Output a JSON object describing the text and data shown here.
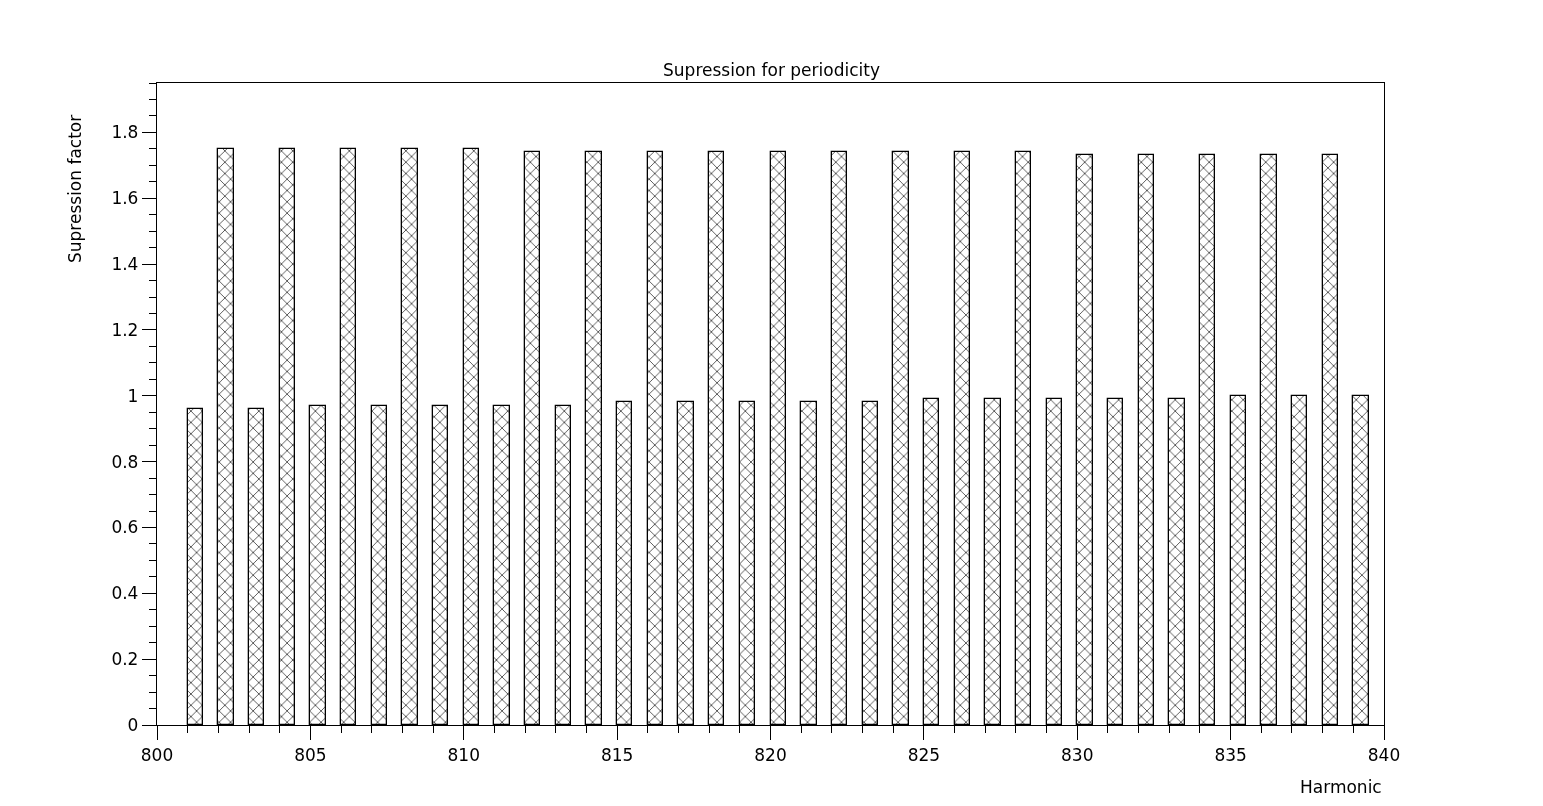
{
  "chart_data": {
    "type": "bar",
    "title": "Supression for periodicity",
    "xlabel": "Harmonic",
    "ylabel": "Supression factor",
    "x": [
      801.25,
      802.25,
      803.25,
      804.25,
      805.25,
      806.25,
      807.25,
      808.25,
      809.25,
      810.25,
      811.25,
      812.25,
      813.25,
      814.25,
      815.25,
      816.25,
      817.25,
      818.25,
      819.25,
      820.25,
      821.25,
      822.25,
      823.25,
      824.25,
      825.25,
      826.25,
      827.25,
      828.25,
      829.25,
      830.25,
      831.25,
      832.25,
      833.25,
      834.25,
      835.25,
      836.25,
      837.25,
      838.25,
      839.25
    ],
    "values": [
      0.96,
      1.75,
      0.96,
      1.75,
      0.97,
      1.75,
      0.97,
      1.75,
      0.97,
      1.75,
      0.97,
      1.74,
      0.97,
      1.74,
      0.98,
      1.74,
      0.98,
      1.74,
      0.98,
      1.74,
      0.98,
      1.74,
      0.98,
      1.74,
      0.99,
      1.74,
      0.99,
      1.74,
      0.99,
      1.73,
      0.99,
      1.73,
      0.99,
      1.73,
      1.0,
      1.73,
      1.0,
      1.73,
      1.0
    ],
    "color": "#000000",
    "xlim": [
      800,
      840
    ],
    "xticks": [
      800,
      805,
      810,
      815,
      820,
      825,
      830,
      835,
      840
    ],
    "ylim": [
      0,
      1.95
    ],
    "yticks": [
      {
        "value": 0,
        "label": "0"
      },
      0.2,
      0.4,
      0.6,
      0.8,
      1,
      1.2,
      1.4,
      1.6,
      1.8
    ],
    "grid": false,
    "legend": false
  }
}
